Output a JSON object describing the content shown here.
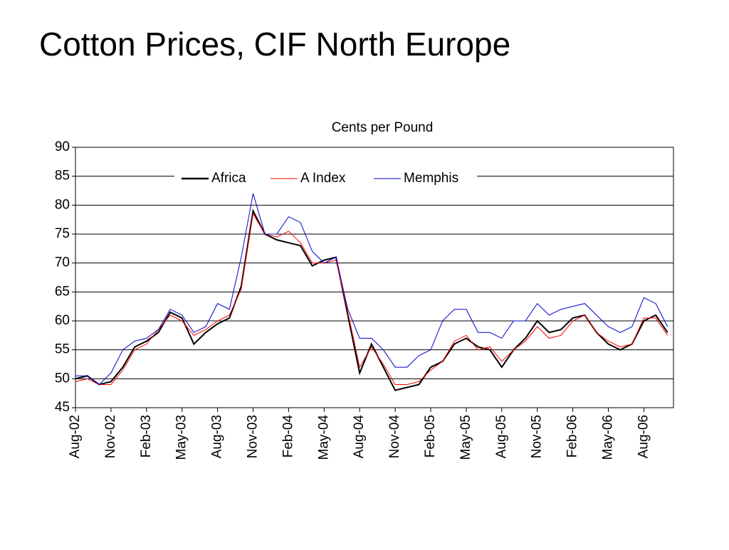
{
  "chart_data": {
    "type": "line",
    "title": "Cotton Prices, CIF North Europe",
    "subtitle": "Cents per Pound",
    "categories": [
      "Aug-02",
      null,
      null,
      "Nov-02",
      null,
      null,
      "Feb-03",
      null,
      null,
      "May-03",
      null,
      null,
      "Aug-03",
      null,
      null,
      "Nov-03",
      null,
      null,
      "Feb-04",
      null,
      null,
      "May-04",
      null,
      null,
      "Aug-04",
      null,
      null,
      "Nov-04",
      null,
      null,
      "Feb-05",
      null,
      null,
      "May-05",
      null,
      null,
      "Aug-05",
      null,
      null,
      "Nov-05",
      null,
      null,
      "Feb-06",
      null,
      null,
      "May-06",
      null,
      null,
      "Aug-06",
      null,
      null
    ],
    "series": [
      {
        "name": "Africa",
        "color": "#000000",
        "values": [
          50,
          50.5,
          49,
          49.5,
          52,
          55.5,
          56.5,
          58,
          61.5,
          60.5,
          56,
          58,
          59.5,
          60.5,
          66,
          79,
          75,
          74,
          73.5,
          73,
          69.5,
          70.5,
          71,
          61,
          51,
          56,
          52,
          48,
          48.5,
          49,
          52,
          53,
          56,
          57,
          55.5,
          55,
          52,
          55,
          57,
          60,
          58,
          58.5,
          60.5,
          61,
          58,
          56,
          55,
          56,
          60,
          61,
          58
        ]
      },
      {
        "name": "A Index",
        "color": "#ff0000",
        "values": [
          49.5,
          50,
          49,
          49,
          51.5,
          55,
          56,
          58.5,
          61,
          60,
          57.5,
          58.5,
          60,
          61,
          65.5,
          78.5,
          75,
          74.5,
          75.5,
          73.5,
          70,
          70,
          70.5,
          61.5,
          52,
          55.5,
          52.5,
          49,
          49,
          49.5,
          51.5,
          53,
          56.5,
          57.5,
          55,
          55.5,
          53,
          55,
          56.5,
          59,
          57,
          57.5,
          60,
          61,
          58,
          56.5,
          55.5,
          56,
          60.5,
          60.5,
          57.5
        ]
      },
      {
        "name": "Memphis",
        "color": "#0000cc",
        "values": [
          50.5,
          50.5,
          49,
          51,
          55,
          56.5,
          57,
          58.5,
          62,
          61,
          58,
          59,
          63,
          62,
          71,
          82,
          75,
          75,
          78,
          77,
          72,
          70,
          71,
          62,
          57,
          57,
          55,
          52,
          52,
          54,
          55,
          60,
          62,
          62,
          58,
          58,
          57,
          60,
          60,
          63,
          61,
          62,
          62.5,
          63,
          61,
          59,
          58,
          59,
          64,
          63,
          59
        ]
      }
    ],
    "ylim": [
      45,
      90
    ],
    "yticks": [
      45,
      50,
      55,
      60,
      65,
      70,
      75,
      80,
      85,
      90
    ],
    "grid": true
  }
}
